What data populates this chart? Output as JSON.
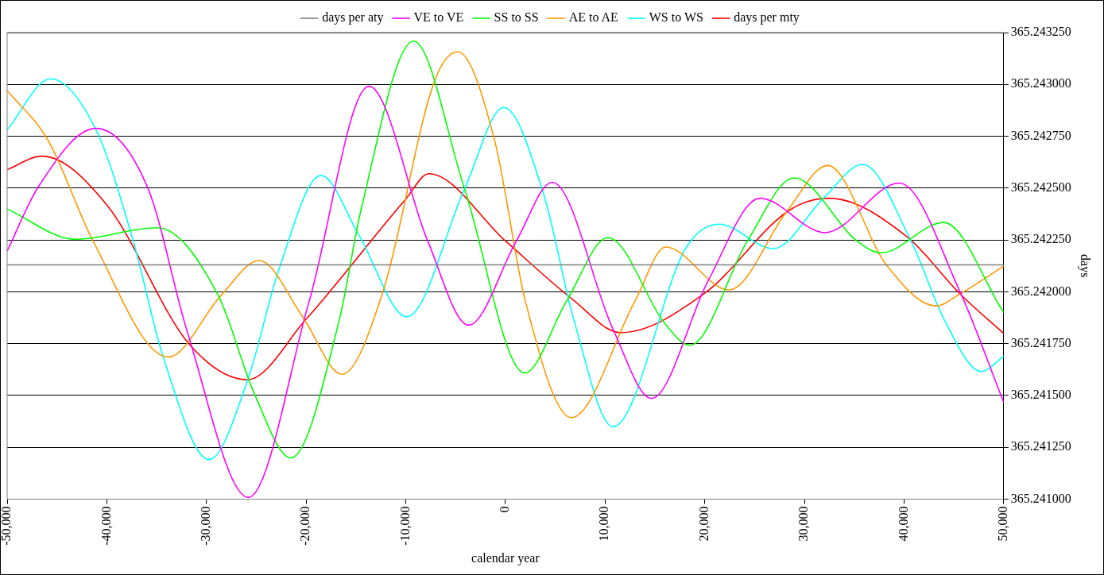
{
  "chart_data": {
    "type": "line",
    "xlabel": "calendar year",
    "ylabel": "days",
    "xlim": [
      -50000,
      50000
    ],
    "xticks": [
      {
        "value": -50000,
        "label": "-50,000"
      },
      {
        "value": -40000,
        "label": "-40,000"
      },
      {
        "value": -30000,
        "label": "-30,000"
      },
      {
        "value": -20000,
        "label": "-20,000"
      },
      {
        "value": -10000,
        "label": "-10,000"
      },
      0,
      {
        "value": 10000,
        "label": "10,000"
      },
      {
        "value": 20000,
        "label": "20,000"
      },
      {
        "value": 30000,
        "label": "30,000"
      },
      {
        "value": 40000,
        "label": "40,000"
      },
      {
        "value": 50000,
        "label": "50,000"
      }
    ],
    "ylim": [
      365.241,
      365.24325
    ],
    "yticks": [
      {
        "value": 365.241,
        "label": "365.241000"
      },
      {
        "value": 365.24125,
        "label": "365.241250"
      },
      {
        "value": 365.2415,
        "label": "365.241500"
      },
      {
        "value": 365.24175,
        "label": "365.241750"
      },
      {
        "value": 365.242,
        "label": "365.242000"
      },
      {
        "value": 365.24225,
        "label": "365.242250"
      },
      {
        "value": 365.2425,
        "label": "365.242500"
      },
      {
        "value": 365.24275,
        "label": "365.242750"
      },
      {
        "value": 365.243,
        "label": "365.243000"
      },
      {
        "value": 365.24325,
        "label": "365.243250"
      }
    ],
    "grid": "y",
    "legend": "top",
    "marker": "none",
    "line_style": "solid",
    "series": [
      {
        "name": "days per aty",
        "color": "#808080",
        "x": [
          -50000,
          50000
        ],
        "values": [
          365.24213,
          365.24213
        ]
      },
      {
        "name": "VE to VE",
        "color": "#ff00ff",
        "x": [
          -50000,
          -46900,
          -41100,
          -35850,
          -31900,
          -25800,
          -19700,
          -13700,
          -7800,
          -3700,
          1100,
          4700,
          10800,
          14650,
          20350,
          25550,
          32070,
          39530,
          45640,
          50000
        ],
        "values": [
          365.242196,
          365.242504,
          365.242788,
          365.242496,
          365.241803,
          365.241008,
          365.241953,
          365.242991,
          365.242245,
          365.241839,
          365.242245,
          365.242528,
          365.241819,
          365.241486,
          365.242054,
          365.242451,
          365.242285,
          365.242524,
          365.241997,
          365.241466
        ]
      },
      {
        "name": "SS to SS",
        "color": "#00ff00",
        "x": [
          -50000,
          -43130,
          -34930,
          -28810,
          -25210,
          -21530,
          -16670,
          -14490,
          -9210,
          -4100,
          1920,
          6110,
          10300,
          16000,
          18500,
          24290,
          28980,
          35260,
          37690,
          43970,
          50000
        ],
        "values": [
          365.242399,
          365.242253,
          365.242309,
          365.241981,
          365.241511,
          365.241199,
          365.241864,
          365.242395,
          365.243209,
          365.242496,
          365.241608,
          365.241953,
          365.242261,
          365.241847,
          365.241742,
          365.242245,
          365.242549,
          365.242245,
          365.242188,
          365.242334,
          365.2419
        ]
      },
      {
        "name": "AE to AE",
        "color": "#ff9900",
        "x": [
          -50000,
          -45900,
          -41380,
          -33840,
          -28560,
          -24710,
          -20350,
          -16400,
          -12310,
          -7120,
          -4780,
          -1090,
          2010,
          6620,
          12980,
          16080,
          22440,
          28220,
          32330,
          38270,
          43210,
          45730,
          50000
        ],
        "values": [
          365.24297,
          365.242731,
          365.242245,
          365.241685,
          365.241981,
          365.242151,
          365.24188,
          365.241602,
          365.241997,
          365.243015,
          365.243157,
          365.242731,
          365.241953,
          365.241393,
          365.241953,
          365.242216,
          365.242009,
          365.242386,
          365.242609,
          365.242127,
          365.241932,
          365.241993,
          365.242123
        ]
      },
      {
        "name": "WS to WS",
        "color": "#00ffff",
        "x": [
          -50000,
          -45650,
          -41040,
          -37350,
          -34340,
          -29730,
          -25800,
          -22780,
          -18510,
          -14740,
          -9880,
          -4100,
          -170,
          3850,
          6870,
          10800,
          18170,
          21440,
          26880,
          31910,
          35840,
          40700,
          44050,
          47740,
          50000
        ],
        "values": [
          365.24278,
          365.243027,
          365.242776,
          365.242245,
          365.241685,
          365.241191,
          365.241584,
          365.242099,
          365.242561,
          365.242277,
          365.24188,
          365.242496,
          365.242889,
          365.242468,
          365.241864,
          365.241349,
          365.242216,
          365.242326,
          365.242208,
          365.242451,
          365.242614,
          365.242245,
          365.241864,
          365.241616,
          365.241689
        ]
      },
      {
        "name": "days per mty",
        "color": "#ff0000",
        "x": [
          -50000,
          -46500,
          -40000,
          -31700,
          -25900,
          -20000,
          -10000,
          -7700,
          0,
          6800,
          11550,
          20000,
          28550,
          32500,
          40300,
          45550,
          50000
        ],
        "values": [
          365.242589,
          365.242654,
          365.242419,
          365.241746,
          365.241576,
          365.241868,
          365.242447,
          365.242569,
          365.242245,
          365.241961,
          365.241803,
          365.241993,
          365.242395,
          365.242451,
          365.242265,
          365.241993,
          365.241799
        ]
      }
    ]
  }
}
